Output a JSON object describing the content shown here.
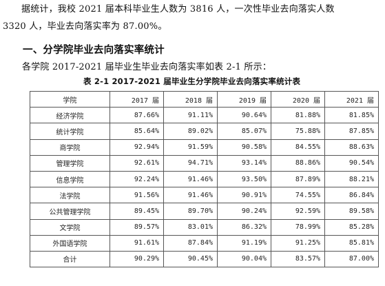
{
  "paragraph": {
    "line1": "据统计，我校 2021 届本科毕业生人数为 3816 人，一次性毕业去向落实人数",
    "line2": "3320 人，毕业去向落实率为 87.00%。"
  },
  "section_heading": "一、分学院毕业去向落实率统计",
  "intro": "各学院 2017-2021 届毕业生毕业去向落实率如表 2-1 所示：",
  "table_caption": "表 2-1 2017-2021 届毕业生分学院毕业去向落实率统计表",
  "table": {
    "headers": [
      "学院",
      "2017 届",
      "2018 届",
      "2019 届",
      "2020 届",
      "2021 届"
    ],
    "rows": [
      [
        "经济学院",
        "87.66%",
        "91.11%",
        "90.64%",
        "81.88%",
        "81.85%"
      ],
      [
        "统计学院",
        "85.64%",
        "89.02%",
        "85.07%",
        "75.88%",
        "87.85%"
      ],
      [
        "商学院",
        "92.94%",
        "91.59%",
        "90.58%",
        "84.55%",
        "88.63%"
      ],
      [
        "管理学院",
        "92.61%",
        "94.71%",
        "93.14%",
        "88.86%",
        "90.54%"
      ],
      [
        "信息学院",
        "92.24%",
        "91.46%",
        "93.50%",
        "87.89%",
        "88.21%"
      ],
      [
        "法学院",
        "91.56%",
        "91.46%",
        "90.91%",
        "74.55%",
        "86.84%"
      ],
      [
        "公共管理学院",
        "89.45%",
        "89.70%",
        "90.24%",
        "92.59%",
        "89.58%"
      ],
      [
        "文学院",
        "89.57%",
        "83.01%",
        "86.32%",
        "78.99%",
        "85.28%"
      ],
      [
        "外国语学院",
        "91.61%",
        "87.84%",
        "91.19%",
        "91.25%",
        "85.81%"
      ],
      [
        "合计",
        "90.29%",
        "90.45%",
        "90.04%",
        "83.57%",
        "87.00%"
      ]
    ]
  }
}
